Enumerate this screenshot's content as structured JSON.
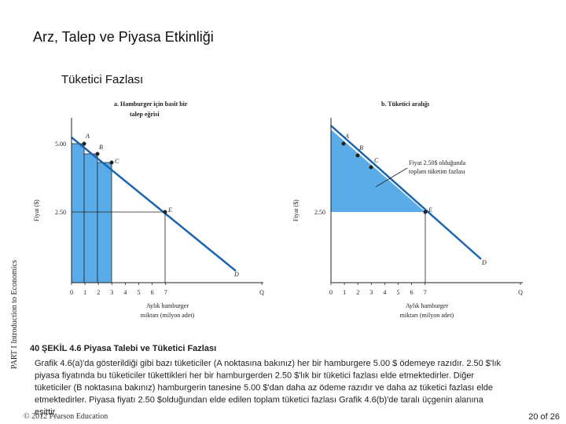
{
  "title": "Arz, Talep ve Piyasa Etkinliği",
  "subtitle": "Tüketici Fazlası",
  "side_label": "PART I Introduction to Economics",
  "figure": {
    "panel_a": {
      "heading": [
        "a. Hamburger için basit bir",
        "talep eğrisi"
      ],
      "y_label": "Fiyat ($)",
      "x_label": [
        "Aylık hamburger",
        "miktarı (milyon adet)"
      ],
      "y_ticks": [
        "5.00",
        "2.50"
      ],
      "x_ticks": [
        "0",
        "1",
        "2",
        "3",
        "4",
        "5",
        "6",
        "7",
        "Q"
      ],
      "points": [
        "A",
        "B",
        "C",
        "E",
        "D"
      ]
    },
    "panel_b": {
      "heading": [
        "b. Tüketici aralığı"
      ],
      "y_label": "Fiyat ($)",
      "x_label": [
        "Aylık hamburger",
        "miktarı (milyon adet)"
      ],
      "y_ticks": [
        "2.50"
      ],
      "x_ticks": [
        "0",
        "1",
        "2",
        "3",
        "4",
        "5",
        "6",
        "7",
        "Q"
      ],
      "points": [
        "A",
        "B",
        "C",
        "E",
        "D"
      ],
      "annotation": [
        "Fiyat 2.50$ olduğunda",
        "toplam tüketim fazlası"
      ]
    }
  },
  "caption": {
    "number": "40",
    "heading": "ŞEKİL 4.6 Piyasa Talebi ve Tüketici Fazlası",
    "body": [
      "Grafik 4.6(a)'da gösterildiği gibi bazı tüketiciler (A noktasına bakınız) her bir hamburgere 5.00 $ ödemeye razıdır. 2.50 $'lık",
      "piyasa fiyatında bu tüketiciler tükettikleri her bir hamburgerden 2.50 $'lık bir tüketici fazlası elde etmektedirler. Diğer",
      "tüketiciler (B noktasına bakınız) hamburgerin tanesine 5.00 $'dan daha az ödeme razıdır ve daha az tüketici fazlası elde",
      "etmektedirler. Piyasa fiyatı 2.50 $olduğundan elde edilen toplam tüketici fazlası Grafik 4.6(b)'de taralı üçgenin alanına",
      "eşittir."
    ]
  },
  "footer": {
    "copyright": "© 2012 Pearson Education",
    "page": "20 of 26"
  }
}
